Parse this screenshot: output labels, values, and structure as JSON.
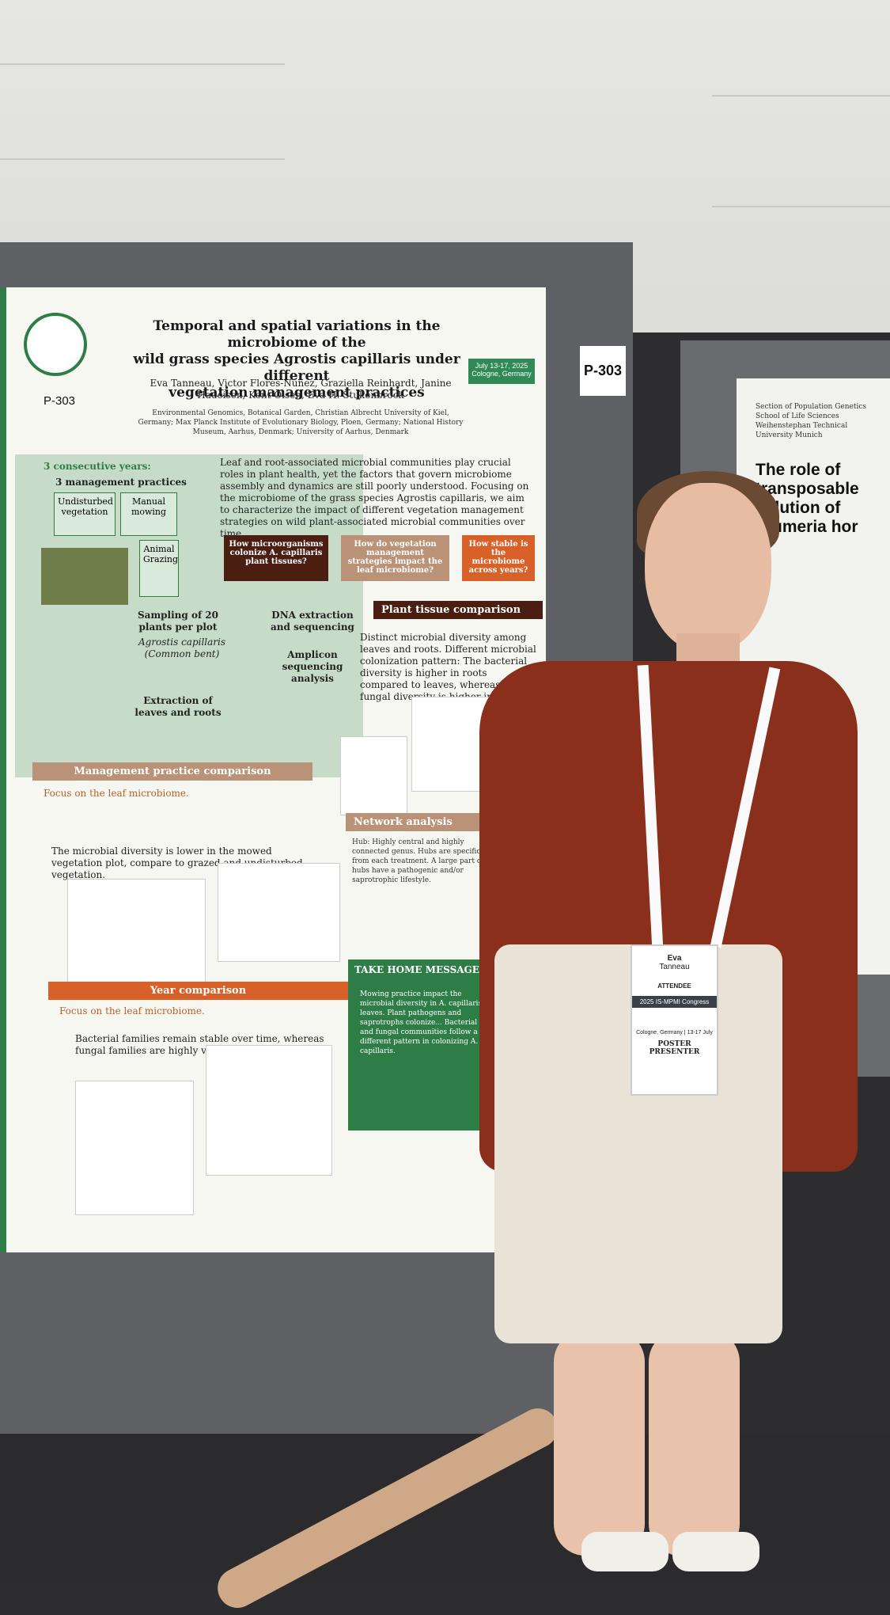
{
  "board_sign": "P-303",
  "poster": {
    "poster_id": "P-303",
    "title": [
      "Temporal and spatial variations in the microbiome of the",
      "wild grass species Agrostis capillaris under different",
      "vegetation management practices"
    ],
    "authors": "Eva Tanneau, Victor Flores-Núñez, Graziella Reinhardt, Janine Haueisen, Kent Olsen, Eva H. Stukenbrock",
    "affiliations": "Environmental Genomics, Botanical Garden, Christian Albrecht University of Kiel, Germany; Max Planck Institute of Evolutionary Biology, Ploen, Germany; National History Museum, Aarhus, Denmark; University of Aarhus, Denmark",
    "date_place": "July 13-17, 2025 Cologne, Germany",
    "intro": "Leaf and root-associated microbial communities play crucial roles in plant health, yet the factors that govern microbiome assembly and dynamics are still poorly understood. Focusing on the microbiome of the grass species Agrostis capillaris, we aim to characterize the impact of different vegetation management strategies on wild plant-associated microbial communities over time.",
    "questions": [
      "How microorganisms colonize A. capillaris plant tissues?",
      "How do vegetation management strategies impact the leaf microbiome?",
      "How stable is the microbiome across years?"
    ],
    "design": {
      "years": "3 consecutive years:",
      "practices_heading": "3 management practices",
      "practices": [
        "Undisturbed vegetation",
        "Manual mowing",
        "Animal Grazing"
      ],
      "sampling": "Sampling of 20 plants per plot",
      "species": "Agrostis capillaris (Common bent)",
      "extraction": "Extraction of leaves and roots",
      "dna": "DNA extraction and sequencing",
      "amplicon": "Amplicon sequencing analysis"
    },
    "sections": {
      "plant_tissue": {
        "heading": "Plant tissue comparison",
        "text": "Distinct microbial diversity among leaves and roots. Different microbial colonization pattern: The bacterial diversity is higher in roots compared to leaves, whereas the fungal diversity is higher in leaves."
      },
      "management": {
        "heading": "Management practice comparison",
        "focus": "Focus on the leaf microbiome.",
        "text": "The microbial diversity is lower in the mowed vegetation plot, compare to grazed and undisturbed vegetation."
      },
      "network": {
        "heading": "Network analysis",
        "text": "Hub: Highly central and highly connected genus. Hubs are specific from each treatment. A large part of hubs have a pathogenic and/or saprotrophic lifestyle."
      },
      "take_home": {
        "heading": "TAKE HOME MESSAGE",
        "text": "Mowing practice impact the microbial diversity in A. capillaris leaves. Plant pathogens and saprotrophs colonize... Bacterial and fungal communities follow a different pattern in colonizing A. capillaris."
      },
      "year": {
        "heading": "Year comparison",
        "focus": "Focus on the leaf microbiome.",
        "text": "Bacterial families remain stable over time, whereas fungal families are highly variable."
      }
    }
  },
  "neighbor_poster": {
    "affiliation": "Section of Population Genetics School of Life Sciences Weihenstephan Technical University Munich",
    "title": [
      "The role of transposable",
      "volution of Blumeria hor"
    ]
  },
  "badge": {
    "first_name": "Eva",
    "last_name": "Tanneau",
    "role": "ATTENDEE",
    "event": "2025 IS-MPMI Congress",
    "date_place": "Cologne, Germany | 13-17 July",
    "ribbon": "POSTER PRESENTER"
  }
}
